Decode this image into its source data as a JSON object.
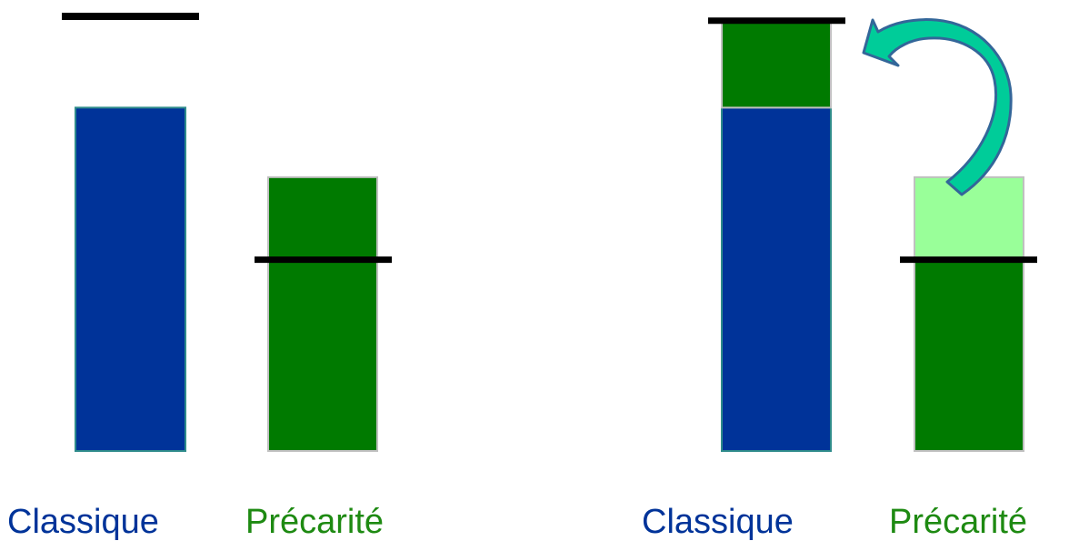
{
  "colors": {
    "classique": "#003399",
    "precarite": "#007a00",
    "precarite_light": "#99ff99",
    "threshold": "#000000",
    "arrow_fill": "#00cc99",
    "arrow_stroke": "#336699",
    "label_classique": "#003399",
    "label_precarite": "#1e8a12"
  },
  "before": {
    "classique": {
      "label": "Classique",
      "bar_level": 0.79,
      "threshold_level": 1.0
    },
    "precarite": {
      "label": "Précarité",
      "bar_level": 0.63,
      "threshold_level": 0.44
    }
  },
  "after": {
    "classique": {
      "label": "Classique",
      "bar_level": 0.79,
      "transfer_level": 0.2,
      "threshold_level": 0.99
    },
    "precarite": {
      "label": "Précarité",
      "bar_level": 0.63,
      "remaining_level": 0.44,
      "threshold_level": 0.44
    }
  },
  "arrow": {
    "icon": "curved-arrow-icon",
    "direction": "from-precarite-surplus-to-classique"
  }
}
